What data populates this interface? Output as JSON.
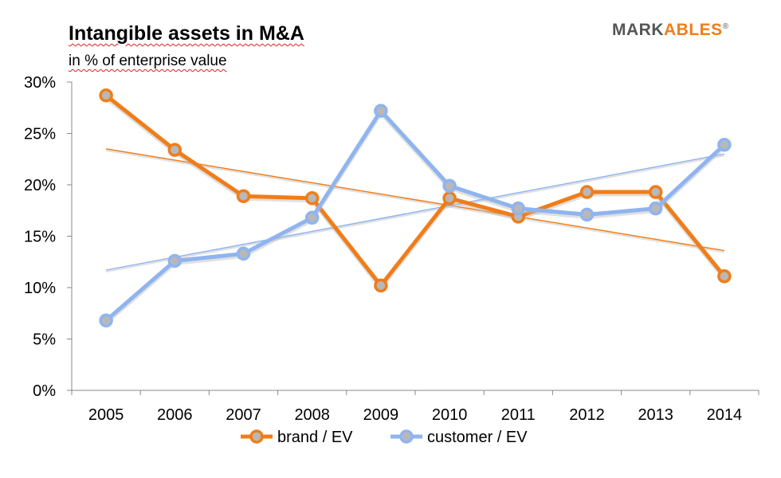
{
  "header": {
    "title": "Intangible assets in M&A",
    "subtitle": "in % of enterprise value"
  },
  "logo": {
    "part1": "MARK",
    "part2": "ABLES",
    "mark": "®"
  },
  "colors": {
    "brand": "#f07d1a",
    "customer": "#8fb4f0",
    "axis": "#888888"
  },
  "chart_data": {
    "type": "line",
    "title": "Intangible assets in M&A",
    "subtitle": "in % of enterprise value",
    "xlabel": "",
    "ylabel": "",
    "categories": [
      "2005",
      "2006",
      "2007",
      "2008",
      "2009",
      "2010",
      "2011",
      "2012",
      "2013",
      "2014"
    ],
    "yticks": [
      "0%",
      "5%",
      "10%",
      "15%",
      "20%",
      "25%",
      "30%"
    ],
    "ylim": [
      0,
      30
    ],
    "series": [
      {
        "name": "brand / EV",
        "color": "#f07d1a",
        "values": [
          28.7,
          23.4,
          18.9,
          18.7,
          10.2,
          18.7,
          16.9,
          19.3,
          19.3,
          11.1
        ],
        "trendline": [
          23.5,
          13.6
        ]
      },
      {
        "name": "customer / EV",
        "color": "#8fb4f0",
        "values": [
          6.8,
          12.6,
          13.3,
          16.8,
          27.2,
          19.9,
          17.7,
          17.1,
          17.7,
          23.9
        ],
        "trendline": [
          11.7,
          23.0
        ]
      }
    ],
    "legend": "bottom",
    "grid": false
  }
}
